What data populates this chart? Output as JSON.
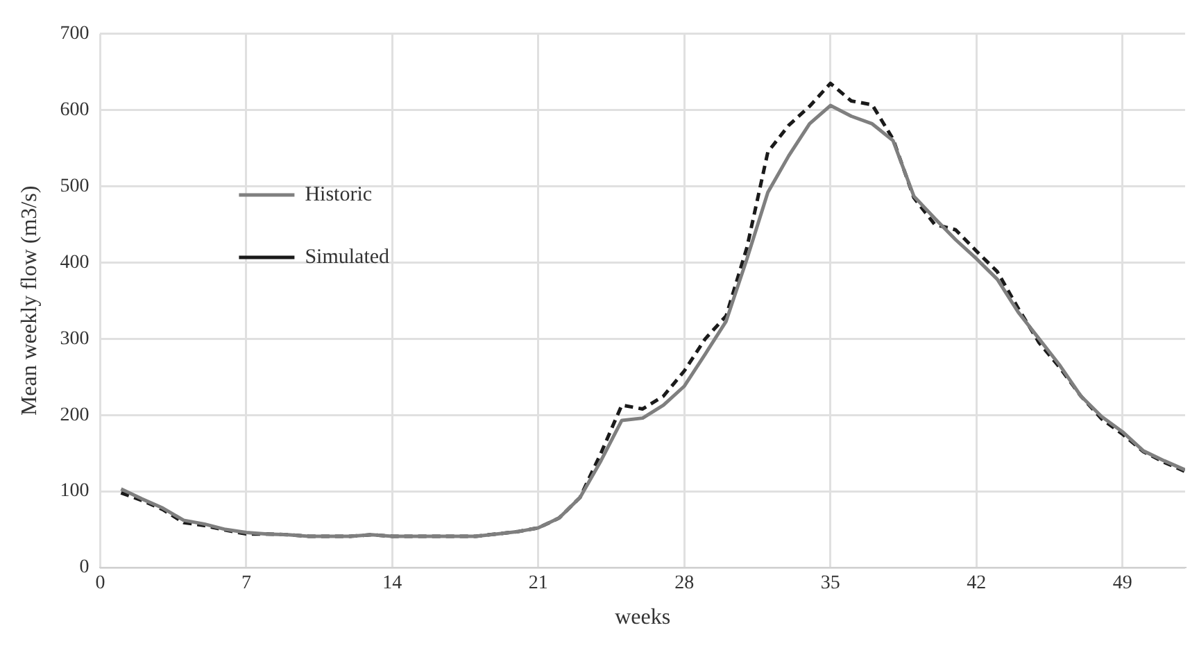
{
  "chart_data": {
    "type": "line",
    "xlabel": "weeks",
    "ylabel": "Mean weekly flow (m3/s)",
    "x": [
      1,
      2,
      3,
      4,
      5,
      6,
      7,
      8,
      9,
      10,
      11,
      12,
      13,
      14,
      15,
      16,
      17,
      18,
      19,
      20,
      21,
      22,
      23,
      24,
      25,
      26,
      27,
      28,
      29,
      30,
      31,
      32,
      33,
      34,
      35,
      36,
      37,
      38,
      39,
      40,
      41,
      42,
      43,
      44,
      45,
      46,
      47,
      48,
      49,
      50,
      51,
      52
    ],
    "series": [
      {
        "name": "Historic",
        "color": "#7f7f7f",
        "line_style": "solid",
        "values": [
          103,
          90,
          78,
          62,
          57,
          50,
          46,
          44,
          43,
          41,
          41,
          41,
          43,
          41,
          41,
          41,
          41,
          41,
          44,
          47,
          52,
          65,
          92,
          140,
          193,
          196,
          213,
          238,
          280,
          323,
          405,
          492,
          540,
          582,
          606,
          592,
          582,
          560,
          487,
          458,
          430,
          405,
          378,
          335,
          300,
          265,
          225,
          198,
          178,
          153,
          140,
          128
        ]
      },
      {
        "name": "Simulated",
        "color": "#1a1a1a",
        "line_style": "dashed",
        "values": [
          98,
          88,
          76,
          59,
          55,
          49,
          44,
          44,
          43,
          41,
          41,
          41,
          43,
          41,
          41,
          41,
          41,
          41,
          44,
          47,
          52,
          65,
          92,
          150,
          213,
          208,
          225,
          258,
          300,
          330,
          420,
          545,
          580,
          605,
          635,
          612,
          607,
          562,
          485,
          450,
          443,
          415,
          388,
          340,
          295,
          262,
          225,
          195,
          175,
          152,
          138,
          126
        ]
      }
    ],
    "xlim": [
      0,
      52
    ],
    "xticks": [
      0,
      7,
      14,
      21,
      28,
      35,
      42,
      49
    ],
    "ylim": [
      0,
      700
    ],
    "yticks": [
      0,
      100,
      200,
      300,
      400,
      500,
      600,
      700
    ],
    "grid": true,
    "legend": "top left",
    "marker": "none"
  }
}
